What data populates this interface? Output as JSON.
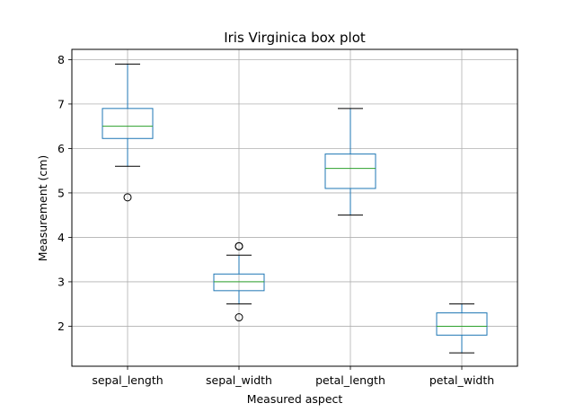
{
  "chart_data": {
    "type": "box",
    "title": "Iris Virginica box plot",
    "xlabel": "Measured aspect",
    "ylabel": "Measurement (cm)",
    "categories": [
      "sepal_length",
      "sepal_width",
      "petal_length",
      "petal_width"
    ],
    "ylim": [
      1.1,
      8.23
    ],
    "yticks": [
      2,
      3,
      4,
      5,
      6,
      7,
      8
    ],
    "grid": true,
    "boxes": [
      {
        "category": "sepal_length",
        "whisker_low": 5.6,
        "q1": 6.225,
        "median": 6.5,
        "q3": 6.9,
        "whisker_high": 7.9,
        "outliers": [
          4.9
        ]
      },
      {
        "category": "sepal_width",
        "whisker_low": 2.5,
        "q1": 2.8,
        "median": 3.0,
        "q3": 3.175,
        "whisker_high": 3.6,
        "outliers": [
          3.8,
          3.8,
          2.2
        ]
      },
      {
        "category": "petal_length",
        "whisker_low": 4.5,
        "q1": 5.1,
        "median": 5.55,
        "q3": 5.875,
        "whisker_high": 6.9,
        "outliers": []
      },
      {
        "category": "petal_width",
        "whisker_low": 1.4,
        "q1": 1.8,
        "median": 2.0,
        "q3": 2.3,
        "whisker_high": 2.5,
        "outliers": []
      }
    ],
    "colors": {
      "box": "#1f77b4",
      "median": "#2ca02c",
      "whisker_cap": "#000000",
      "outlier": "#000000",
      "grid": "#b0b0b0"
    }
  }
}
